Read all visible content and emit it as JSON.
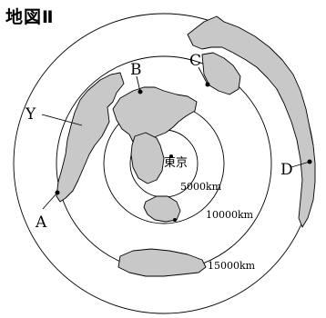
{
  "map": {
    "title": "地図Ⅱ",
    "center_label": "東京",
    "distance_labels": [
      "5000km",
      "10000km",
      "15000km"
    ],
    "point_labels": {
      "A": "A",
      "B": "B",
      "C": "C",
      "D": "D",
      "Y": "Y"
    },
    "land_color": "#c8c8c8",
    "line_color": "#000000"
  }
}
